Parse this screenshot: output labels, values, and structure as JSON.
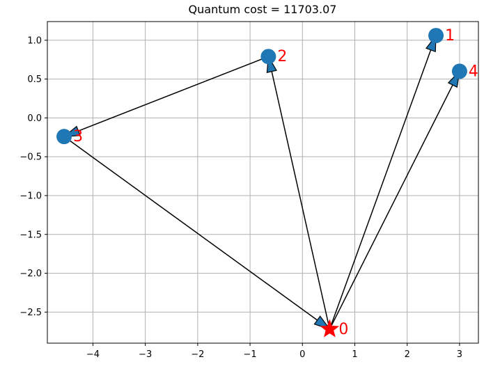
{
  "chart_data": {
    "type": "scatter",
    "title": "Quantum cost = 11703.07",
    "xlabel": "",
    "ylabel": "",
    "xlim": [
      -4.87,
      3.36
    ],
    "ylim": [
      -2.9,
      1.24
    ],
    "xticks": [
      -4,
      -3,
      -2,
      -1,
      0,
      1,
      2,
      3
    ],
    "yticks": [
      -2.5,
      -2.0,
      -1.5,
      -1.0,
      -0.5,
      0.0,
      0.5,
      1.0
    ],
    "xtick_labels": [
      "−4",
      "−3",
      "−2",
      "−1",
      "0",
      "1",
      "2",
      "3"
    ],
    "ytick_labels": [
      "−2.5",
      "−2.0",
      "−1.5",
      "−1.0",
      "−0.5",
      "0.0",
      "0.5",
      "1.0"
    ],
    "grid": true,
    "nodes": [
      {
        "id": "0",
        "x": 0.52,
        "y": -2.72,
        "marker": "star",
        "color": "#ff0000"
      },
      {
        "id": "1",
        "x": 2.55,
        "y": 1.06,
        "marker": "circle",
        "color": "#1f77b4"
      },
      {
        "id": "2",
        "x": -0.65,
        "y": 0.79,
        "marker": "circle",
        "color": "#1f77b4"
      },
      {
        "id": "3",
        "x": -4.55,
        "y": -0.24,
        "marker": "circle",
        "color": "#1f77b4"
      },
      {
        "id": "4",
        "x": 3.0,
        "y": 0.6,
        "marker": "circle",
        "color": "#1f77b4"
      }
    ],
    "edges": [
      {
        "from": "2",
        "to": "3"
      },
      {
        "from": "3",
        "to": "0"
      },
      {
        "from": "0",
        "to": "2"
      },
      {
        "from": "0",
        "to": "1"
      },
      {
        "from": "0",
        "to": "4"
      }
    ],
    "colors": {
      "node": "#1f77b4",
      "start": "#ff0000",
      "label": "#ff0000",
      "arrow_fill": "#1f77b4",
      "arrow_edge": "#000000",
      "grid": "#b0b0b0"
    }
  }
}
